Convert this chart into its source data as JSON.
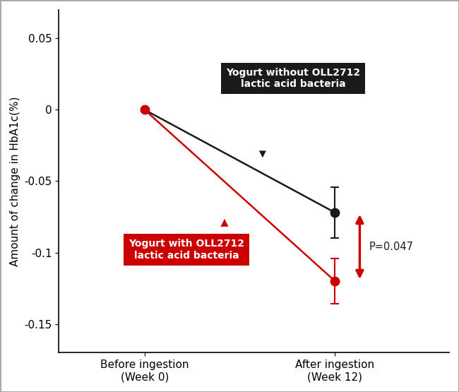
{
  "black_x": [
    0,
    1
  ],
  "black_y": [
    0.0,
    -0.072
  ],
  "black_yerr": [
    0.0,
    0.018
  ],
  "red_x": [
    0,
    1
  ],
  "red_y": [
    0.0,
    -0.12
  ],
  "red_yerr": [
    0.0,
    0.016
  ],
  "xtick_positions": [
    0,
    1
  ],
  "xtick_labels": [
    "Before ingestion\n(Week 0)",
    "After ingestion\n(Week 12)"
  ],
  "ylim": [
    -0.17,
    0.07
  ],
  "yticks": [
    -0.15,
    -0.1,
    -0.05,
    0.0,
    0.05
  ],
  "ytick_labels": [
    "-0.15",
    "-0.1",
    "-0.05",
    "0",
    "0.05"
  ],
  "ylabel": "Amount of change in HbA1c(%)",
  "black_color": "#1a1a1a",
  "red_color": "#cc0000",
  "p_text": "P=0.047",
  "black_label": "Yogurt without OLL2712\nlactic acid bacteria",
  "red_label": "Yogurt with OLL2712\nlactic acid bacteria",
  "background_color": "#ffffff"
}
